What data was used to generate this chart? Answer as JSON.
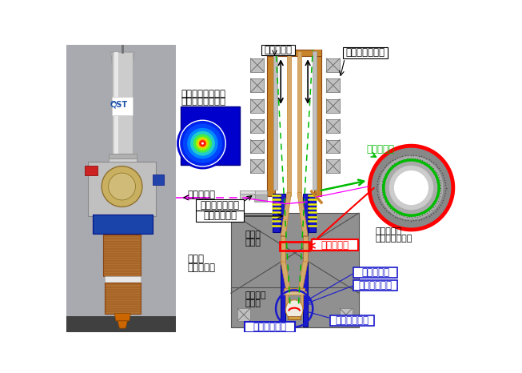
{
  "fig_width": 6.53,
  "fig_height": 4.66,
  "dpi": 100,
  "labels": {
    "collector": "コレクター",
    "sweep_coil": "スイープコイル",
    "diamond_window_label_1": "ダイヤモンド窓で",
    "diamond_window_label_2": "のマイクロ波分布",
    "microwave": "マイクロ波",
    "diamond_window": "ダイヤモンド窓",
    "mode_converter": "モード変換器",
    "main_coil_1": "主磁場",
    "main_coil_2": "コイル",
    "superconducting_magnet_1": "超伝導",
    "superconducting_magnet_2": "マグネット",
    "sub_coil_1": "補助磁場",
    "sub_coil_2": "コイル",
    "triode_gun": "三極型電子銃",
    "electron_beam": "電子ビーム",
    "cavity_resonator": "空洞共振器",
    "body_electrode": "ボディ電極",
    "anode_electrode": "アノード電極",
    "cathode_electrode": "カソード電極",
    "cavity_microwave_1": "空洞内での",
    "cavity_microwave_2": "マイクロ波分布"
  }
}
